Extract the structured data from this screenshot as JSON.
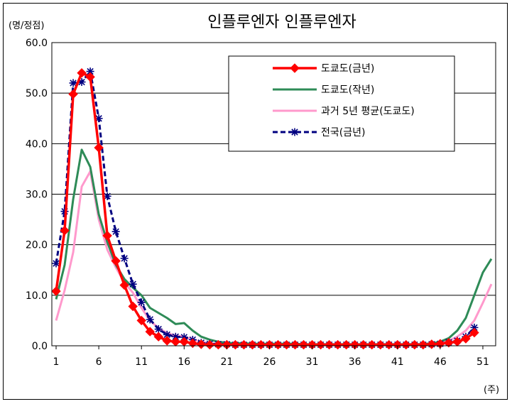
{
  "chart_data": {
    "type": "line",
    "title": "인플루엔자 인플루엔자",
    "ylabel": "(명/정점)",
    "xlabel": "(주)",
    "ylim": [
      0,
      60
    ],
    "yticks": [
      "0.0",
      "10.0",
      "20.0",
      "30.0",
      "40.0",
      "50.0",
      "60.0"
    ],
    "xticks": [
      "1",
      "6",
      "11",
      "16",
      "21",
      "26",
      "31",
      "36",
      "41",
      "46",
      "51"
    ],
    "xrange": [
      1,
      52
    ],
    "grid": true,
    "legend_position": "top-right",
    "series": [
      {
        "name": "도쿄도(금년)",
        "color": "#ff0000",
        "style": "solid-diamond",
        "x": [
          1,
          2,
          3,
          4,
          5,
          6,
          7,
          8,
          9,
          10,
          11,
          12,
          13,
          14,
          15,
          16,
          17,
          18,
          19,
          20,
          21,
          22,
          23,
          24,
          25,
          26,
          27,
          28,
          29,
          30,
          31,
          32,
          33,
          34,
          35,
          36,
          37,
          38,
          39,
          40,
          41,
          42,
          43,
          44,
          45,
          46,
          47,
          48,
          49,
          50
        ],
        "values": [
          10.8,
          22.8,
          49.8,
          54.0,
          53.2,
          39.2,
          21.8,
          16.8,
          12.0,
          7.8,
          5.0,
          2.8,
          1.8,
          1.0,
          0.8,
          0.8,
          0.5,
          0.3,
          0.2,
          0.2,
          0.2,
          0.2,
          0.2,
          0.2,
          0.2,
          0.2,
          0.2,
          0.2,
          0.2,
          0.2,
          0.2,
          0.2,
          0.2,
          0.2,
          0.2,
          0.2,
          0.2,
          0.2,
          0.2,
          0.2,
          0.2,
          0.2,
          0.2,
          0.2,
          0.3,
          0.4,
          0.6,
          0.8,
          1.4,
          2.6
        ]
      },
      {
        "name": "도쿄도(작년)",
        "color": "#2e8b57",
        "style": "solid",
        "x": [
          1,
          2,
          3,
          4,
          5,
          6,
          7,
          8,
          9,
          10,
          11,
          12,
          13,
          14,
          15,
          16,
          17,
          18,
          19,
          20,
          21,
          22,
          23,
          24,
          25,
          26,
          27,
          28,
          29,
          30,
          31,
          32,
          33,
          34,
          35,
          36,
          37,
          38,
          39,
          40,
          41,
          42,
          43,
          44,
          45,
          46,
          47,
          48,
          49,
          50,
          51,
          52
        ],
        "values": [
          9.2,
          16.0,
          29.0,
          38.8,
          35.4,
          26.0,
          20.5,
          16.0,
          13.2,
          11.5,
          10.0,
          7.5,
          6.5,
          5.5,
          4.3,
          4.5,
          3.0,
          1.8,
          1.2,
          0.8,
          0.6,
          0.5,
          0.5,
          0.4,
          0.4,
          0.4,
          0.4,
          0.4,
          0.4,
          0.3,
          0.3,
          0.3,
          0.3,
          0.3,
          0.3,
          0.3,
          0.3,
          0.3,
          0.3,
          0.3,
          0.3,
          0.3,
          0.3,
          0.3,
          0.5,
          0.8,
          1.5,
          3.0,
          5.5,
          10.0,
          14.5,
          17.2
        ]
      },
      {
        "name": "과거 5년 평균(도쿄도)",
        "color": "#ff99cc",
        "style": "solid",
        "x": [
          1,
          2,
          3,
          4,
          5,
          6,
          7,
          8,
          9,
          10,
          11,
          12,
          13,
          14,
          15,
          16,
          17,
          18,
          19,
          20,
          21,
          22,
          23,
          24,
          25,
          26,
          27,
          28,
          29,
          30,
          31,
          32,
          33,
          34,
          35,
          36,
          37,
          38,
          39,
          40,
          41,
          42,
          43,
          44,
          45,
          46,
          47,
          48,
          49,
          50,
          51,
          52
        ],
        "values": [
          5.0,
          11.0,
          18.5,
          31.5,
          34.5,
          25.0,
          19.0,
          15.5,
          12.5,
          10.5,
          7.5,
          5.0,
          3.5,
          2.5,
          2.0,
          1.8,
          1.2,
          0.8,
          0.5,
          0.4,
          0.3,
          0.3,
          0.3,
          0.3,
          0.3,
          0.3,
          0.3,
          0.3,
          0.3,
          0.3,
          0.3,
          0.3,
          0.3,
          0.3,
          0.3,
          0.3,
          0.3,
          0.3,
          0.3,
          0.3,
          0.3,
          0.3,
          0.3,
          0.4,
          0.5,
          0.6,
          1.0,
          1.8,
          3.0,
          5.0,
          8.5,
          12.2
        ]
      },
      {
        "name": "전국(금년)",
        "color": "#000080",
        "style": "dashed-star",
        "x": [
          1,
          2,
          3,
          4,
          5,
          6,
          7,
          8,
          9,
          10,
          11,
          12,
          13,
          14,
          15,
          16,
          17,
          18,
          19,
          20,
          21,
          22,
          23,
          24,
          25,
          26,
          27,
          28,
          29,
          30,
          31,
          32,
          33,
          34,
          35,
          36,
          37,
          38,
          39,
          40,
          41,
          42,
          43,
          44,
          45,
          46,
          47,
          48,
          49,
          50
        ],
        "values": [
          16.3,
          26.6,
          52.0,
          52.2,
          54.3,
          45.0,
          29.6,
          22.6,
          17.3,
          12.2,
          8.6,
          5.2,
          3.3,
          2.2,
          1.8,
          1.7,
          1.2,
          0.6,
          0.4,
          0.3,
          0.3,
          0.2,
          0.2,
          0.2,
          0.2,
          0.2,
          0.2,
          0.2,
          0.2,
          0.2,
          0.2,
          0.2,
          0.2,
          0.2,
          0.2,
          0.2,
          0.2,
          0.2,
          0.2,
          0.2,
          0.2,
          0.2,
          0.2,
          0.2,
          0.3,
          0.4,
          0.7,
          1.0,
          1.8,
          3.6
        ]
      }
    ]
  }
}
